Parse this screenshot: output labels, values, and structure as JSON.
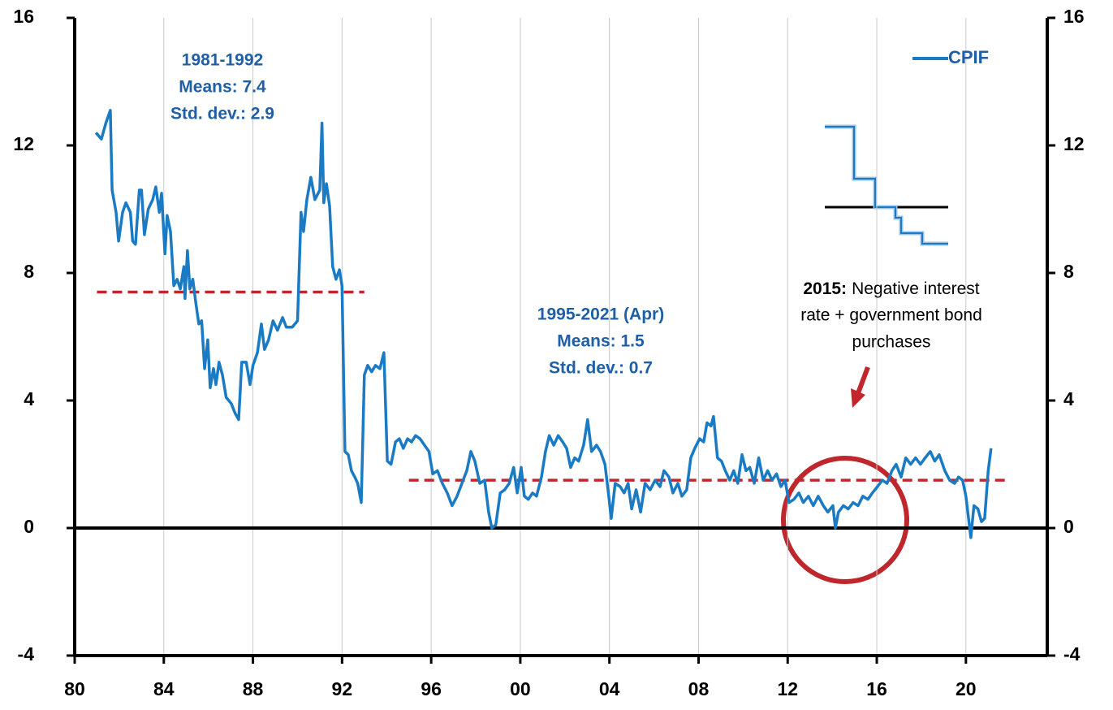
{
  "chart_data": {
    "type": "line",
    "x": [
      1980.95,
      1981.2,
      1981.4,
      1981.6,
      1981.68,
      1981.86,
      1981.97,
      1982.15,
      1982.3,
      1982.5,
      1982.6,
      1982.73,
      1982.9,
      1983.0,
      1983.13,
      1983.3,
      1983.5,
      1983.64,
      1983.8,
      1983.9,
      1984.05,
      1984.15,
      1984.3,
      1984.45,
      1984.6,
      1984.74,
      1984.9,
      1984.95,
      1985.06,
      1985.17,
      1985.3,
      1985.43,
      1985.57,
      1985.7,
      1985.83,
      1985.97,
      1986.08,
      1986.23,
      1986.34,
      1986.48,
      1986.63,
      1986.8,
      1987.03,
      1987.2,
      1987.36,
      1987.5,
      1987.7,
      1987.87,
      1988.0,
      1988.2,
      1988.38,
      1988.52,
      1988.7,
      1988.9,
      1989.1,
      1989.33,
      1989.5,
      1989.76,
      1990.0,
      1990.16,
      1990.27,
      1990.42,
      1990.6,
      1990.78,
      1991.0,
      1991.1,
      1991.18,
      1991.3,
      1991.44,
      1991.58,
      1991.73,
      1991.88,
      1992.0,
      1992.13,
      1992.28,
      1992.42,
      1992.57,
      1992.7,
      1992.86,
      1993.0,
      1993.15,
      1993.33,
      1993.5,
      1993.7,
      1993.88,
      1994.03,
      1994.2,
      1994.4,
      1994.57,
      1994.75,
      1994.94,
      1995.12,
      1995.3,
      1995.5,
      1995.7,
      1995.9,
      1996.07,
      1996.28,
      1996.5,
      1996.72,
      1996.94,
      1997.16,
      1997.38,
      1997.6,
      1997.78,
      1997.96,
      1998.18,
      1998.4,
      1998.58,
      1998.72,
      1998.9,
      1999.1,
      1999.3,
      1999.5,
      1999.7,
      1999.86,
      2000.04,
      2000.18,
      2000.36,
      2000.55,
      2000.73,
      2000.95,
      2001.13,
      2001.3,
      2001.5,
      2001.7,
      2001.9,
      2002.08,
      2002.26,
      2002.44,
      2002.62,
      2002.84,
      2003.02,
      2003.2,
      2003.42,
      2003.6,
      2003.8,
      2003.97,
      2004.08,
      2004.26,
      2004.48,
      2004.66,
      2004.84,
      2005.0,
      2005.2,
      2005.4,
      2005.6,
      2005.83,
      2006.05,
      2006.27,
      2006.45,
      2006.67,
      2006.85,
      2007.07,
      2007.25,
      2007.47,
      2007.65,
      2007.83,
      2008.05,
      2008.23,
      2008.38,
      2008.56,
      2008.67,
      2008.85,
      2009.03,
      2009.2,
      2009.4,
      2009.58,
      2009.76,
      2009.95,
      2010.13,
      2010.3,
      2010.5,
      2010.7,
      2010.9,
      2011.1,
      2011.3,
      2011.5,
      2011.7,
      2011.88,
      2012.06,
      2012.28,
      2012.5,
      2012.7,
      2012.93,
      2013.15,
      2013.37,
      2013.6,
      2013.8,
      2014.03,
      2014.14,
      2014.28,
      2014.5,
      2014.72,
      2014.94,
      2015.16,
      2015.37,
      2015.6,
      2015.8,
      2016.03,
      2016.25,
      2016.46,
      2016.68,
      2016.87,
      2017.09,
      2017.3,
      2017.52,
      2017.74,
      2017.96,
      2018.17,
      2018.4,
      2018.6,
      2018.8,
      2019.05,
      2019.27,
      2019.49,
      2019.67,
      2019.85,
      2020.0,
      2020.1,
      2020.22,
      2020.36,
      2020.54,
      2020.7,
      2020.84,
      2021.0,
      2021.13
    ],
    "series": [
      {
        "name": "CPIF",
        "color": "#1a7bc4",
        "values": [
          12.4,
          12.2,
          12.7,
          13.1,
          10.6,
          9.9,
          9.0,
          9.9,
          10.2,
          9.9,
          9.0,
          8.9,
          10.6,
          10.6,
          9.2,
          10.0,
          10.3,
          10.7,
          9.9,
          10.5,
          8.6,
          9.8,
          9.3,
          7.6,
          7.8,
          7.5,
          8.2,
          7.2,
          8.7,
          7.5,
          7.8,
          7.1,
          6.4,
          6.5,
          5.0,
          5.9,
          4.4,
          5.0,
          4.5,
          5.2,
          4.8,
          4.1,
          3.9,
          3.6,
          3.4,
          5.2,
          5.2,
          4.5,
          5.1,
          5.5,
          6.4,
          5.6,
          5.9,
          6.5,
          6.2,
          6.6,
          6.3,
          6.3,
          6.5,
          9.9,
          9.3,
          10.3,
          11.0,
          10.3,
          10.6,
          12.7,
          10.2,
          10.8,
          10.1,
          8.2,
          7.8,
          8.1,
          7.6,
          2.4,
          2.3,
          1.8,
          1.6,
          1.4,
          0.8,
          4.8,
          5.1,
          4.9,
          5.1,
          5.0,
          5.5,
          2.1,
          2.0,
          2.7,
          2.8,
          2.5,
          2.8,
          2.7,
          2.9,
          2.8,
          2.6,
          2.4,
          1.7,
          1.8,
          1.4,
          1.1,
          0.7,
          1.0,
          1.4,
          1.8,
          2.4,
          2.1,
          1.4,
          1.5,
          0.5,
          0.0,
          0.1,
          1.1,
          1.2,
          1.4,
          1.9,
          1.1,
          1.9,
          1.0,
          0.9,
          1.1,
          1.0,
          1.6,
          2.4,
          2.9,
          2.6,
          2.9,
          2.7,
          2.5,
          1.9,
          2.2,
          2.1,
          2.6,
          3.4,
          2.4,
          2.6,
          2.4,
          2.0,
          1.0,
          0.3,
          1.4,
          1.3,
          1.1,
          1.4,
          0.6,
          1.2,
          0.5,
          1.4,
          1.2,
          1.5,
          1.3,
          1.8,
          1.6,
          1.1,
          1.4,
          1.0,
          1.2,
          2.2,
          2.5,
          2.8,
          2.7,
          3.3,
          3.2,
          3.5,
          2.2,
          2.1,
          1.8,
          1.5,
          1.8,
          1.4,
          2.3,
          1.8,
          1.9,
          1.4,
          2.2,
          1.5,
          1.8,
          1.5,
          1.7,
          1.3,
          1.5,
          0.8,
          0.9,
          1.1,
          0.8,
          1.0,
          0.7,
          1.0,
          0.7,
          0.5,
          0.7,
          0.0,
          0.5,
          0.7,
          0.6,
          0.8,
          0.7,
          1.0,
          0.9,
          1.1,
          1.3,
          1.5,
          1.4,
          1.8,
          2.0,
          1.6,
          2.2,
          2.0,
          2.2,
          2.0,
          2.2,
          2.4,
          2.1,
          2.3,
          1.8,
          1.5,
          1.4,
          1.6,
          1.5,
          1.0,
          0.4,
          -0.3,
          0.7,
          0.6,
          0.2,
          0.3,
          1.8,
          2.5
        ]
      }
    ],
    "xlim": [
      1980,
      2023.65
    ],
    "xticks": [
      {
        "value": 1980,
        "label": "80"
      },
      {
        "value": 1984,
        "label": "84"
      },
      {
        "value": 1988,
        "label": "88"
      },
      {
        "value": 1992,
        "label": "92"
      },
      {
        "value": 1996,
        "label": "96"
      },
      {
        "value": 2000,
        "label": "00"
      },
      {
        "value": 2004,
        "label": "04"
      },
      {
        "value": 2008,
        "label": "08"
      },
      {
        "value": 2012,
        "label": "12"
      },
      {
        "value": 2016,
        "label": "16"
      },
      {
        "value": 2020,
        "label": "20"
      }
    ],
    "ylim": [
      -4,
      16
    ],
    "yticks": [
      -4,
      0,
      4,
      8,
      12,
      16
    ],
    "y2lim": [
      -4,
      16
    ],
    "y2ticks": [
      -4,
      0,
      4,
      8,
      12,
      16
    ],
    "grid": "x",
    "legend": "upper right",
    "reference_lines": [
      {
        "value": 7.4,
        "x": [
          1981,
          1993
        ],
        "color": "#c0272d"
      },
      {
        "value": 1.5,
        "x": [
          1995,
          2022
        ],
        "color": "#c0272d"
      }
    ],
    "annotations": [
      {
        "lines": [
          "1981-1992",
          "Means: 7.4",
          "Std. dev.: 2.9"
        ]
      },
      {
        "lines": [
          "1995-2021 (Apr)",
          "Means: 1.5",
          "Std. dev.: 0.7"
        ]
      },
      {
        "lead": "2015:",
        "lines": [
          "Negative interest",
          "rate + government bond",
          "purchases"
        ]
      }
    ]
  }
}
